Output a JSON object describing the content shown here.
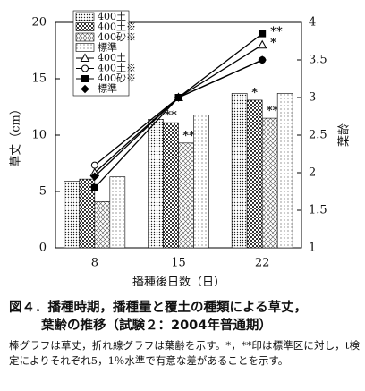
{
  "chart_data": {
    "type": "bar_line",
    "categories": [
      "8",
      "15",
      "22"
    ],
    "x_label": "播種後日数（日）",
    "y_label": "草丈（cm）",
    "y2_label": "葉齢",
    "ylim": [
      0,
      20
    ],
    "yticks": [
      0,
      5,
      10,
      15,
      20
    ],
    "y2lim": [
      1,
      4
    ],
    "y2ticks": [
      1,
      1.5,
      2,
      2.5,
      3,
      3.5,
      4
    ],
    "series": [
      {
        "name": "400土",
        "pattern": "dots",
        "color": "#000000",
        "values": [
          5.9,
          11.4,
          13.7
        ],
        "significance": [
          null,
          null,
          null
        ]
      },
      {
        "name": "400土※",
        "pattern": "checker",
        "color": "#000000",
        "values": [
          6.1,
          11.1,
          13.1
        ],
        "significance": [
          null,
          "**",
          "*"
        ]
      },
      {
        "name": "400砂※",
        "pattern": "cross",
        "color": "#000000",
        "values": [
          4.1,
          9.3,
          11.5
        ],
        "significance": [
          null,
          "**",
          "**"
        ]
      },
      {
        "name": "標準",
        "pattern": "finedots",
        "color": "#000000",
        "values": [
          6.3,
          11.8,
          13.7
        ],
        "significance": [
          null,
          null,
          null
        ]
      }
    ],
    "line_series": [
      {
        "name": "400土",
        "marker": "triangle",
        "axis": "y2",
        "color": "#000000",
        "values": [
          2.0,
          3.0,
          3.7
        ],
        "significance": [
          null,
          null,
          "*"
        ]
      },
      {
        "name": "400土※",
        "marker": "circle",
        "axis": "y2",
        "color": "#000000",
        "values": [
          2.1,
          3.0,
          3.5
        ],
        "significance": [
          null,
          null,
          null
        ]
      },
      {
        "name": "400砂※",
        "marker": "square",
        "axis": "y2",
        "color": "#000000",
        "values": [
          1.8,
          3.0,
          3.85
        ],
        "significance": [
          null,
          null,
          "**"
        ]
      },
      {
        "name": "標準",
        "marker": "diamond",
        "axis": "y2",
        "color": "#000000",
        "values": [
          1.95,
          3.0,
          3.5
        ],
        "significance": [
          null,
          null,
          null
        ]
      }
    ]
  },
  "caption": {
    "title_lines": [
      "図４．播種時期，播種量と覆土の種類による草丈，",
      "葉齢の推移（試験２：2004年普通期）"
    ],
    "note": "棒グラフは草丈，折れ線グラフは葉齢を示す。*，**印は標準区に対し，t検定によりそれぞれ5，1％水準で有意な差があることを示す。"
  }
}
